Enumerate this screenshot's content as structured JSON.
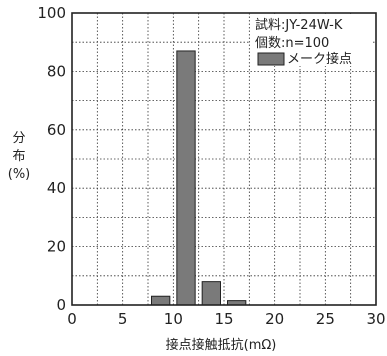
{
  "chart_data": {
    "type": "bar",
    "ylabel_lines": [
      "分",
      "布",
      "(%)"
    ],
    "xlabel": "接点接触抵抗(mΩ)",
    "xlim": [
      0,
      30
    ],
    "ylim": [
      0,
      100
    ],
    "x_ticks": [
      0,
      5,
      10,
      15,
      20,
      25,
      30
    ],
    "y_ticks": [
      0,
      20,
      40,
      60,
      80,
      100
    ],
    "x_minor_step": 2.5,
    "y_minor_step": 10,
    "grid": "dotted",
    "legend_position": "top-right",
    "annotation_lines": [
      "試料:JY-24W-K",
      "個数:n=100"
    ],
    "series": [
      {
        "name": "メーク接点",
        "color": "#7a7a7a",
        "bars": [
          {
            "x_start": 7.5,
            "x_end": 10,
            "value": 3
          },
          {
            "x_start": 10,
            "x_end": 12.5,
            "value": 87
          },
          {
            "x_start": 12.5,
            "x_end": 15,
            "value": 8
          },
          {
            "x_start": 15,
            "x_end": 17.5,
            "value": 1.5
          }
        ]
      }
    ]
  }
}
